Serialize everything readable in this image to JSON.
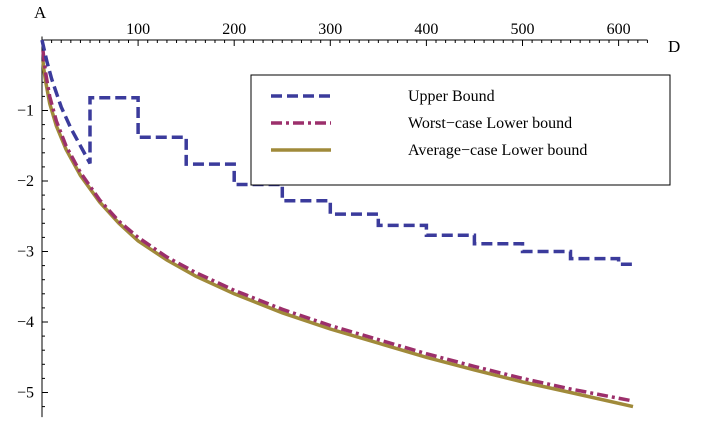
{
  "chart_data": {
    "type": "line",
    "xlabel": "D",
    "ylabel": "A",
    "xlim": [
      0,
      630
    ],
    "ylim": [
      -5.35,
      0.05
    ],
    "x_ticks": [
      100,
      200,
      300,
      400,
      500,
      600
    ],
    "y_ticks": [
      -1,
      -2,
      -3,
      -4,
      -5
    ],
    "grid": false,
    "legend_position": "top-right",
    "series": [
      {
        "name": "Upper Bound",
        "color": "#3b3b9c",
        "style": "dashed",
        "x": [
          0,
          5,
          10,
          20,
          30,
          40,
          50,
          50,
          100,
          100,
          150,
          150,
          200,
          200,
          250,
          250,
          300,
          300,
          350,
          350,
          400,
          400,
          450,
          450,
          500,
          500,
          550,
          550,
          600,
          600,
          615
        ],
        "y": [
          0.0,
          -0.3,
          -0.55,
          -0.95,
          -1.25,
          -1.5,
          -1.75,
          -0.82,
          -0.82,
          -1.38,
          -1.38,
          -1.76,
          -1.76,
          -2.05,
          -2.05,
          -2.28,
          -2.28,
          -2.47,
          -2.47,
          -2.63,
          -2.63,
          -2.77,
          -2.77,
          -2.89,
          -2.89,
          -3.0,
          -3.0,
          -3.1,
          -3.1,
          -3.18,
          -3.18
        ]
      },
      {
        "name": "Worst−case Lower bound",
        "color": "#9c2f6b",
        "style": "dash-dot",
        "x": [
          1,
          2,
          4,
          8,
          15,
          25,
          40,
          60,
          80,
          100,
          130,
          160,
          200,
          250,
          300,
          350,
          400,
          450,
          500,
          550,
          615
        ],
        "y": [
          -0.15,
          -0.28,
          -0.48,
          -0.8,
          -1.15,
          -1.5,
          -1.88,
          -2.27,
          -2.57,
          -2.8,
          -3.08,
          -3.3,
          -3.55,
          -3.82,
          -4.05,
          -4.25,
          -4.45,
          -4.63,
          -4.8,
          -4.95,
          -5.12
        ]
      },
      {
        "name": "Average−case Lower bound",
        "color": "#a08a3a",
        "style": "solid",
        "x": [
          1,
          2,
          4,
          8,
          15,
          25,
          40,
          60,
          80,
          100,
          130,
          160,
          200,
          250,
          300,
          350,
          400,
          450,
          500,
          550,
          615
        ],
        "y": [
          -0.3,
          -0.42,
          -0.6,
          -0.9,
          -1.22,
          -1.55,
          -1.92,
          -2.3,
          -2.6,
          -2.85,
          -3.12,
          -3.35,
          -3.6,
          -3.87,
          -4.1,
          -4.3,
          -4.5,
          -4.68,
          -4.85,
          -5.0,
          -5.2
        ]
      }
    ]
  }
}
